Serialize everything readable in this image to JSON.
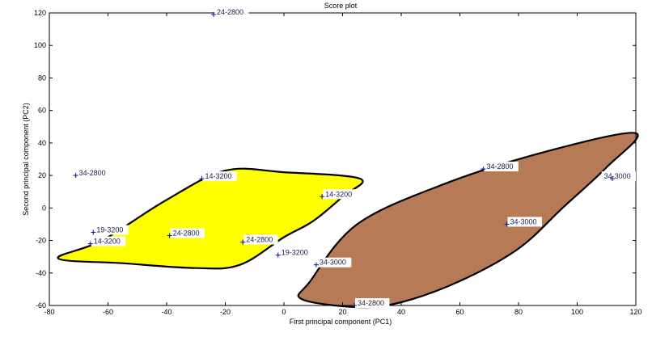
{
  "chart_data": {
    "type": "scatter",
    "title": "Score plot",
    "xlabel": "First principal component (PC1)",
    "ylabel": "Second principal component (PC2)",
    "xlim": [
      -80,
      120
    ],
    "ylim": [
      -60,
      120
    ],
    "xticks": [
      -80,
      -60,
      -40,
      -20,
      0,
      20,
      40,
      60,
      80,
      100,
      120
    ],
    "yticks": [
      -60,
      -40,
      -20,
      0,
      20,
      40,
      60,
      80,
      100,
      120
    ],
    "grid": false,
    "points": [
      {
        "label": "24-2800",
        "x": -24,
        "y": 119
      },
      {
        "label": "34-2800",
        "x": -71,
        "y": 20
      },
      {
        "label": "14-3200",
        "x": -28,
        "y": 18
      },
      {
        "label": "14-3200",
        "x": 13,
        "y": 7
      },
      {
        "label": "19-3200",
        "x": -65,
        "y": -15
      },
      {
        "label": "14-3200",
        "x": -66,
        "y": -22
      },
      {
        "label": "24-2800",
        "x": -39,
        "y": -17
      },
      {
        "label": "24-2800",
        "x": -14,
        "y": -21
      },
      {
        "label": "19-3200",
        "x": -2,
        "y": -29
      },
      {
        "label": "34-3000",
        "x": 11,
        "y": -35
      },
      {
        "label": "34-2800",
        "x": 68,
        "y": 24
      },
      {
        "label": "34-3000",
        "x": 112,
        "y": 18
      },
      {
        "label": "34-3000",
        "x": 76,
        "y": -10
      },
      {
        "label": "34-2800",
        "x": 24,
        "y": -60
      }
    ],
    "regions": [
      {
        "color": "#ffff00",
        "outline": [
          [
            -77,
            -31
          ],
          [
            -62,
            -20
          ],
          [
            -40,
            5
          ],
          [
            -20,
            23
          ],
          [
            0,
            22
          ],
          [
            26,
            18
          ],
          [
            20,
            7
          ],
          [
            10,
            -8
          ],
          [
            0,
            -18
          ],
          [
            -15,
            -35
          ],
          [
            -30,
            -37
          ],
          [
            -55,
            -34
          ],
          [
            -77,
            -31
          ]
        ]
      },
      {
        "color": "#b77a57",
        "outline": [
          [
            6,
            -56
          ],
          [
            9,
            -45
          ],
          [
            25,
            -10
          ],
          [
            55,
            15
          ],
          [
            90,
            35
          ],
          [
            120,
            46
          ],
          [
            110,
            25
          ],
          [
            95,
            0
          ],
          [
            80,
            -25
          ],
          [
            60,
            -45
          ],
          [
            40,
            -58
          ],
          [
            25,
            -61
          ],
          [
            6,
            -56
          ]
        ]
      }
    ]
  }
}
